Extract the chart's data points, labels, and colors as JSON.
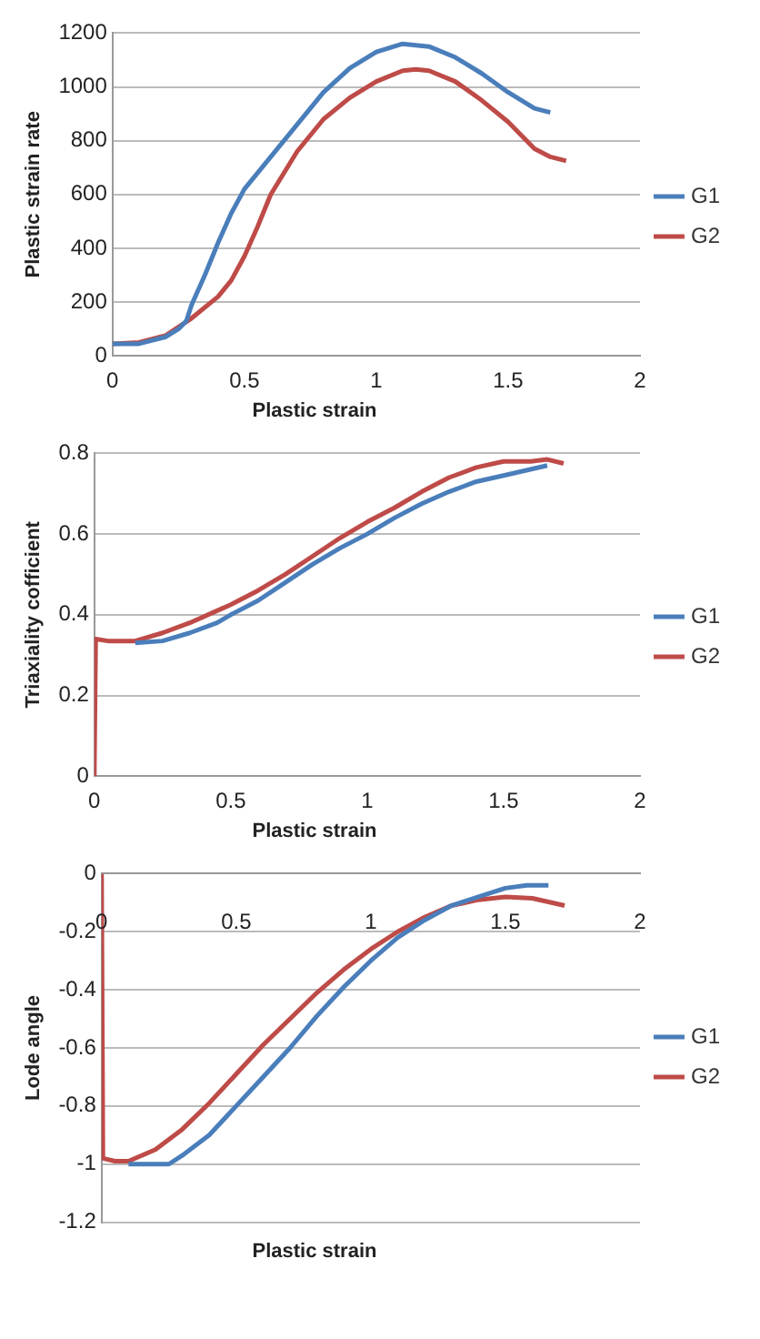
{
  "chart_data": [
    {
      "type": "line",
      "xlabel": "Plastic strain",
      "ylabel": "Plastic strain rate",
      "xlim": [
        0,
        2
      ],
      "xticks": [
        0,
        0.5,
        1,
        1.5,
        2
      ],
      "ylim": [
        0,
        1200
      ],
      "yticks": [
        0,
        200,
        400,
        600,
        800,
        1000,
        1200
      ],
      "grid": "y",
      "legend": "right",
      "marker": "none",
      "line_style": "solid",
      "series": [
        {
          "name": "G1",
          "color": "#4a7ebb",
          "x": [
            0,
            0.1,
            0.2,
            0.25,
            0.28,
            0.3,
            0.35,
            0.4,
            0.45,
            0.5,
            0.6,
            0.7,
            0.8,
            0.9,
            1.0,
            1.1,
            1.2,
            1.3,
            1.4,
            1.5,
            1.6,
            1.66
          ],
          "values": [
            45,
            45,
            70,
            100,
            130,
            190,
            300,
            420,
            530,
            620,
            740,
            860,
            980,
            1070,
            1130,
            1160,
            1150,
            1110,
            1050,
            980,
            920,
            905
          ]
        },
        {
          "name": "G2",
          "color": "#be4b48",
          "x": [
            0,
            0.1,
            0.2,
            0.3,
            0.4,
            0.45,
            0.5,
            0.55,
            0.6,
            0.7,
            0.8,
            0.9,
            1.0,
            1.1,
            1.15,
            1.2,
            1.3,
            1.4,
            1.5,
            1.6,
            1.66,
            1.72
          ],
          "values": [
            45,
            50,
            75,
            140,
            220,
            280,
            370,
            480,
            600,
            760,
            880,
            960,
            1020,
            1060,
            1065,
            1060,
            1020,
            950,
            870,
            770,
            740,
            725
          ]
        }
      ]
    },
    {
      "type": "line",
      "xlabel": "Plastic strain",
      "ylabel": "Triaxiality cofficient",
      "xlim": [
        0,
        2
      ],
      "xticks": [
        0,
        0.5,
        1,
        1.5,
        2
      ],
      "ylim": [
        0,
        0.8
      ],
      "yticks": [
        0,
        0.2,
        0.4,
        0.6,
        0.8
      ],
      "grid": "y",
      "legend": "right",
      "marker": "none",
      "line_style": "solid",
      "series": [
        {
          "name": "G1",
          "color": "#4a7ebb",
          "x": [
            0.15,
            0.25,
            0.35,
            0.45,
            0.5,
            0.6,
            0.7,
            0.8,
            0.9,
            1.0,
            1.1,
            1.2,
            1.3,
            1.4,
            1.5,
            1.66
          ],
          "values": [
            0.33,
            0.335,
            0.355,
            0.38,
            0.4,
            0.435,
            0.48,
            0.525,
            0.565,
            0.6,
            0.64,
            0.675,
            0.705,
            0.73,
            0.745,
            0.77
          ]
        },
        {
          "name": "G2",
          "color": "#be4b48",
          "x": [
            0,
            0.005,
            0.05,
            0.15,
            0.25,
            0.35,
            0.45,
            0.5,
            0.6,
            0.7,
            0.8,
            0.9,
            1.0,
            1.1,
            1.2,
            1.3,
            1.4,
            1.5,
            1.6,
            1.66,
            1.72
          ],
          "values": [
            0,
            0.34,
            0.335,
            0.335,
            0.355,
            0.38,
            0.41,
            0.425,
            0.46,
            0.5,
            0.545,
            0.59,
            0.63,
            0.665,
            0.705,
            0.74,
            0.765,
            0.78,
            0.78,
            0.785,
            0.775
          ]
        }
      ]
    },
    {
      "type": "line",
      "xlabel": "Plastic strain",
      "ylabel": "Lode angle",
      "xlim": [
        0,
        2
      ],
      "xticks": [
        0,
        0.5,
        1,
        1.5,
        2
      ],
      "ylim": [
        -1.2,
        0
      ],
      "yticks": [
        -1.2,
        -1,
        -0.8,
        -0.6,
        -0.4,
        -0.2,
        0
      ],
      "grid": "y",
      "legend": "right",
      "marker": "none",
      "line_style": "solid",
      "series": [
        {
          "name": "G1",
          "color": "#4a7ebb",
          "x": [
            0.1,
            0.25,
            0.3,
            0.4,
            0.5,
            0.6,
            0.7,
            0.8,
            0.9,
            1.0,
            1.1,
            1.2,
            1.3,
            1.4,
            1.5,
            1.58,
            1.66
          ],
          "values": [
            -1.0,
            -1.0,
            -0.97,
            -0.9,
            -0.8,
            -0.7,
            -0.6,
            -0.49,
            -0.39,
            -0.3,
            -0.22,
            -0.16,
            -0.11,
            -0.08,
            -0.05,
            -0.04,
            -0.04
          ]
        },
        {
          "name": "G2",
          "color": "#be4b48",
          "x": [
            0,
            0.005,
            0.05,
            0.1,
            0.2,
            0.3,
            0.4,
            0.5,
            0.6,
            0.7,
            0.8,
            0.9,
            1.0,
            1.1,
            1.2,
            1.3,
            1.4,
            1.5,
            1.6,
            1.72
          ],
          "values": [
            0,
            -0.98,
            -0.99,
            -0.99,
            -0.95,
            -0.88,
            -0.79,
            -0.69,
            -0.59,
            -0.5,
            -0.41,
            -0.33,
            -0.26,
            -0.2,
            -0.15,
            -0.11,
            -0.09,
            -0.08,
            -0.085,
            -0.11
          ]
        }
      ]
    }
  ]
}
